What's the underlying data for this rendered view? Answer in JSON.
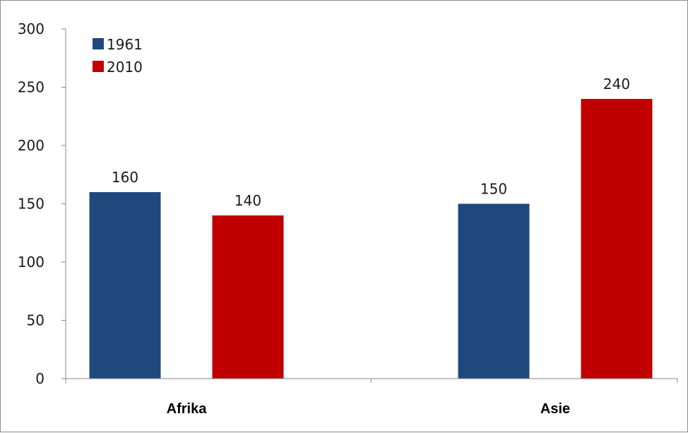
{
  "chart_data": {
    "type": "bar",
    "categories": [
      "Afrika",
      "Asie"
    ],
    "series": [
      {
        "name": "1961",
        "color": "#1f497d",
        "values": [
          160,
          150
        ]
      },
      {
        "name": "2010",
        "color": "#c00000",
        "values": [
          140,
          240
        ]
      }
    ],
    "ylim": [
      0,
      300
    ],
    "yticks": [
      0,
      50,
      100,
      150,
      200,
      250,
      300
    ],
    "grid": false,
    "legend": "top-left",
    "data_labels": true
  }
}
